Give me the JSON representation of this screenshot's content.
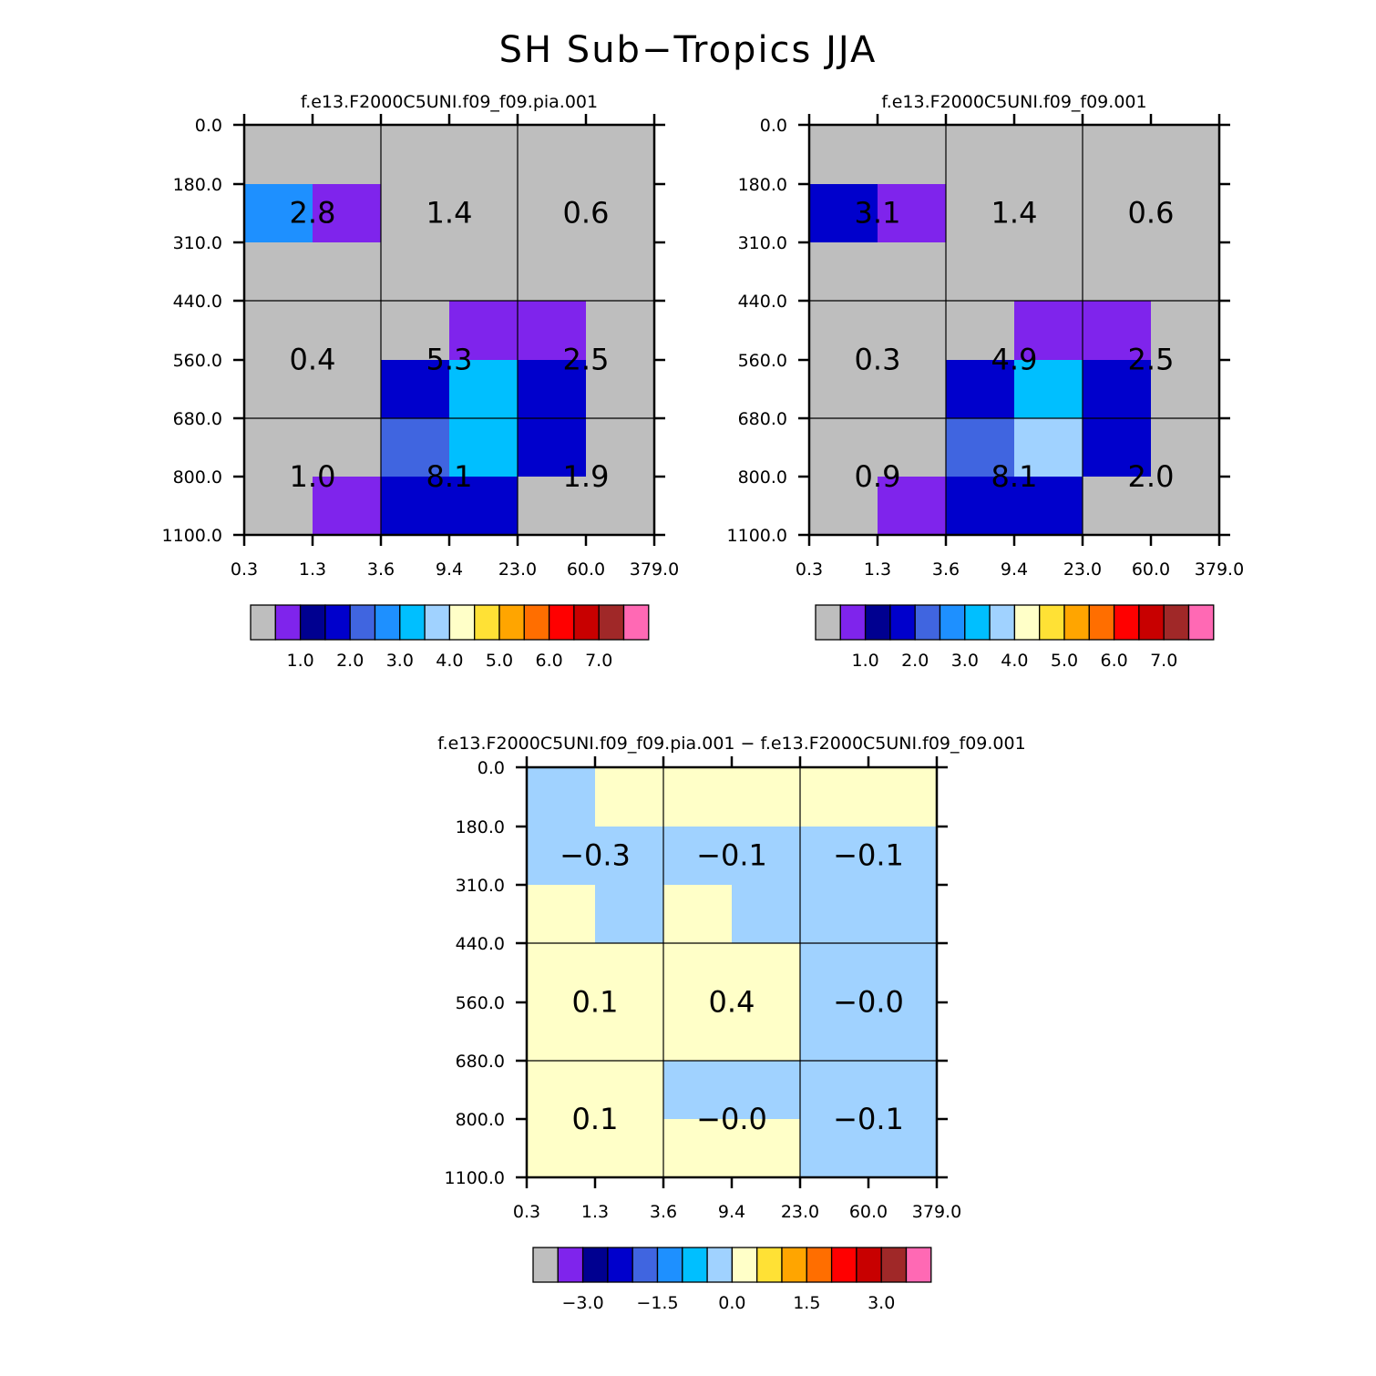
{
  "title": "SH Sub−Tropics JJA",
  "chart_data": [
    {
      "type": "heatmap",
      "title": "f.e13.F2000C5UNI.f09_f09.pia.001",
      "x_ticks": [
        "0.3",
        "1.3",
        "3.6",
        "9.4",
        "23.0",
        "60.0",
        "379.0"
      ],
      "y_ticks": [
        "0.0",
        "180.0",
        "310.0",
        "440.0",
        "560.0",
        "680.0",
        "800.0",
        "1100.0"
      ],
      "cells": [
        [
          0,
          0,
          0,
          0,
          0,
          0
        ],
        [
          2.5,
          0.7,
          0,
          0,
          0,
          0
        ],
        [
          0,
          0,
          0,
          0,
          0,
          0
        ],
        [
          0,
          0,
          0,
          0.7,
          0.7,
          0
        ],
        [
          0,
          0,
          1.5,
          3.3,
          1.5,
          0
        ],
        [
          0,
          0,
          2.3,
          3.3,
          1.5,
          0
        ],
        [
          0,
          0.7,
          1.9,
          1.5,
          0,
          0
        ]
      ],
      "box_values": [
        [
          "2.8",
          "1.4",
          "0.6"
        ],
        [
          "0.4",
          "5.3",
          "2.5"
        ],
        [
          "1.0",
          "8.1",
          "1.9"
        ]
      ],
      "colorbar_labels": [
        "1.0",
        "2.0",
        "3.0",
        "4.0",
        "5.0",
        "6.0",
        "7.0"
      ],
      "colorbar_levels": [
        0.5,
        1,
        1.5,
        2,
        2.5,
        3,
        3.5,
        4,
        4.5,
        5,
        5.5,
        6,
        6.5,
        7,
        7.5
      ]
    },
    {
      "type": "heatmap",
      "title": "f.e13.F2000C5UNI.f09_f09.001",
      "x_ticks": [
        "0.3",
        "1.3",
        "3.6",
        "9.4",
        "23.0",
        "60.0",
        "379.0"
      ],
      "y_ticks": [
        "0.0",
        "180.0",
        "310.0",
        "440.0",
        "560.0",
        "680.0",
        "800.0",
        "1100.0"
      ],
      "cells": [
        [
          0,
          0,
          0,
          0,
          0,
          0
        ],
        [
          1.5,
          0.7,
          0,
          0,
          0,
          0
        ],
        [
          0,
          0,
          0,
          0,
          0,
          0
        ],
        [
          0,
          0,
          0,
          0.7,
          0.7,
          0
        ],
        [
          0,
          0,
          1.5,
          3.3,
          1.5,
          0
        ],
        [
          0,
          0,
          2.3,
          3.8,
          1.5,
          0
        ],
        [
          0,
          0.7,
          1.9,
          1.5,
          0,
          0
        ]
      ],
      "box_values": [
        [
          "3.1",
          "1.4",
          "0.6"
        ],
        [
          "0.3",
          "4.9",
          "2.5"
        ],
        [
          "0.9",
          "8.1",
          "2.0"
        ]
      ],
      "colorbar_labels": [
        "1.0",
        "2.0",
        "3.0",
        "4.0",
        "5.0",
        "6.0",
        "7.0"
      ],
      "colorbar_levels": [
        0.5,
        1,
        1.5,
        2,
        2.5,
        3,
        3.5,
        4,
        4.5,
        5,
        5.5,
        6,
        6.5,
        7,
        7.5
      ]
    },
    {
      "type": "heatmap",
      "title": "f.e13.F2000C5UNI.f09_f09.pia.001 − f.e13.F2000C5UNI.f09_f09.001",
      "x_ticks": [
        "0.3",
        "1.3",
        "3.6",
        "9.4",
        "23.0",
        "60.0",
        "379.0"
      ],
      "y_ticks": [
        "0.0",
        "180.0",
        "310.0",
        "440.0",
        "560.0",
        "680.0",
        "800.0",
        "1100.0"
      ],
      "cells": [
        [
          -0.2,
          0.2,
          0.2,
          0.2,
          0.2,
          0.2
        ],
        [
          -0.2,
          -0.2,
          -0.2,
          -0.2,
          -0.2,
          -0.2
        ],
        [
          0.2,
          -0.2,
          0.2,
          -0.2,
          -0.2,
          -0.2
        ],
        [
          0.2,
          0.2,
          0.2,
          0.2,
          -0.2,
          -0.2
        ],
        [
          0.2,
          0.2,
          0.2,
          0.2,
          -0.2,
          -0.2
        ],
        [
          0.2,
          0.2,
          -0.2,
          -0.2,
          -0.2,
          -0.2
        ],
        [
          0.2,
          0.2,
          0.2,
          0.2,
          -0.2,
          -0.2
        ]
      ],
      "box_values": [
        [
          "−0.3",
          "−0.1",
          "−0.1"
        ],
        [
          "0.1",
          "0.4",
          "−0.0"
        ],
        [
          "0.1",
          "−0.0",
          "−0.1"
        ]
      ],
      "colorbar_labels": [
        "−3.0",
        "−1.5",
        "0.0",
        "1.5",
        "3.0"
      ],
      "colorbar_levels": [
        -3.5,
        -3,
        -2.5,
        -2,
        -1.5,
        -1,
        -0.5,
        0,
        0.5,
        1,
        1.5,
        2,
        2.5,
        3,
        3.5
      ]
    }
  ],
  "colors": {
    "palette": [
      "#bebebe",
      "#7f24ec",
      "#000090",
      "#0000cc",
      "#4065e0",
      "#1e90ff",
      "#00bfff",
      "#a0d2ff",
      "#ffffc8",
      "#ffe135",
      "#ffa500",
      "#ff6e00",
      "#ff0000",
      "#c80000",
      "#a02828",
      "#ff69b4"
    ]
  }
}
